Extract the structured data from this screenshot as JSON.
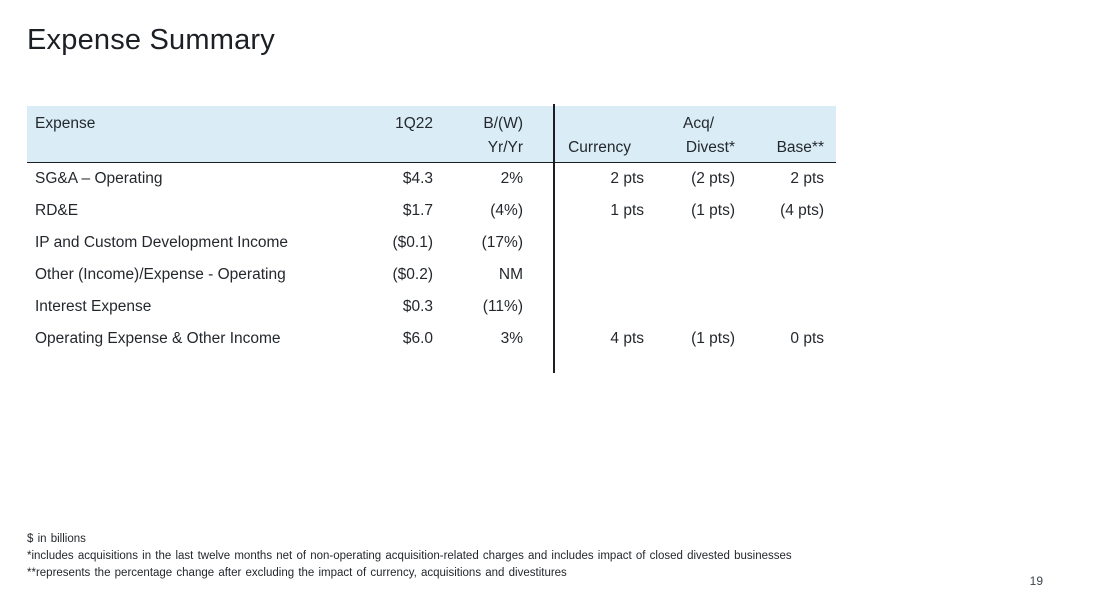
{
  "title": "Expense Summary",
  "table": {
    "header": {
      "expense": "Expense",
      "q1": "1Q22",
      "bw": "B/(W)",
      "yryr": "Yr/Yr",
      "currency": "Currency",
      "acq": "Acq/",
      "divest": "Divest*",
      "base": "Base**"
    },
    "rows": [
      {
        "label": "SG&A – Operating",
        "q1": "$4.3",
        "bw": "2%",
        "currency": "2 pts",
        "divest": "(2 pts)",
        "base": "2 pts"
      },
      {
        "label": "RD&E",
        "q1": "$1.7",
        "bw": "(4%)",
        "currency": "1 pts",
        "divest": "(1 pts)",
        "base": "(4 pts)"
      },
      {
        "label": "IP and Custom Development Income",
        "q1": "($0.1)",
        "bw": "(17%)",
        "currency": "",
        "divest": "",
        "base": ""
      },
      {
        "label": "Other (Income)/Expense - Operating",
        "q1": "($0.2)",
        "bw": "NM",
        "currency": "",
        "divest": "",
        "base": ""
      },
      {
        "label": "Interest Expense",
        "q1": "$0.3",
        "bw": "(11%)",
        "currency": "",
        "divest": "",
        "base": ""
      },
      {
        "label": "Operating Expense & Other Income",
        "q1": "$6.0",
        "bw": "3%",
        "currency": "4 pts",
        "divest": "(1 pts)",
        "base": "0 pts"
      }
    ]
  },
  "footnotes": {
    "scale": "$ in billions",
    "acq_divest": "*includes acquisitions in the last twelve months net of non-operating acquisition-related charges and includes impact of closed divested businesses",
    "base": "**represents the percentage change after excluding the impact of currency,  acquisitions and divestitures"
  },
  "page": {
    "number": "19"
  },
  "colors": {
    "header_bg": "#DAEDF6",
    "divider": "#1B1F24",
    "text": "#24282D"
  }
}
